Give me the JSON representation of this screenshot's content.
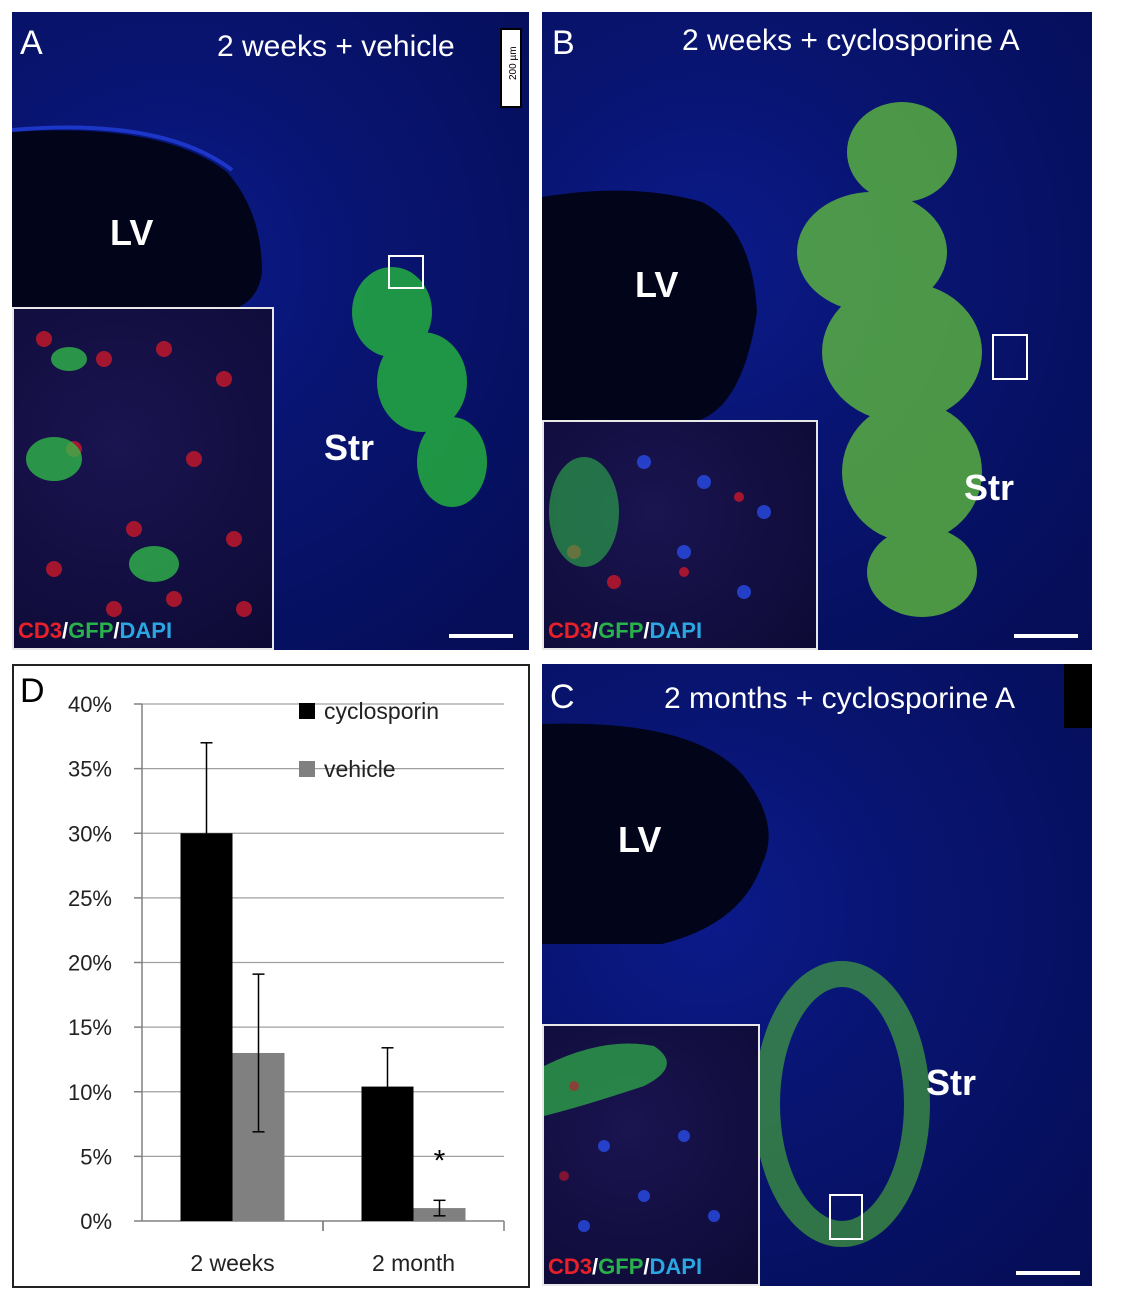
{
  "panels": {
    "A": {
      "letter": "A",
      "title": "2 weeks + vehicle",
      "lv": "LV",
      "str": "Str",
      "scale_label": "200 µm"
    },
    "B": {
      "letter": "B",
      "title": "2 weeks + cyclosporine A",
      "lv": "LV",
      "str": "Str"
    },
    "C": {
      "letter": "C",
      "title": "2 months + cyclosporine A",
      "lv": "LV",
      "str": "Str"
    },
    "D": {
      "letter": "D"
    }
  },
  "stain": {
    "cd3": "CD3",
    "sep1": "/",
    "gfp": "GFP",
    "sep2": "/",
    "dapi": "DAPI"
  },
  "colors": {
    "cd3": "#e8202a",
    "gfp": "#27b34a",
    "dapi": "#2aa6e0",
    "cyclosporin": "#000000",
    "vehicle": "#808080"
  },
  "chart_data": {
    "type": "bar",
    "categories": [
      "2 weeks",
      "2 month"
    ],
    "series": [
      {
        "name": "cyclosporin",
        "values": [
          30,
          10.4
        ],
        "error": [
          7,
          3
        ]
      },
      {
        "name": "vehicle",
        "values": [
          13,
          1
        ],
        "error": [
          6.1,
          0.6
        ]
      }
    ],
    "y_ticks": [
      "0%",
      "5%",
      "10%",
      "15%",
      "20%",
      "25%",
      "30%",
      "35%",
      "40%"
    ],
    "ylim": [
      0,
      40
    ],
    "grid": true,
    "legend": "top-right",
    "annotation": "*"
  }
}
